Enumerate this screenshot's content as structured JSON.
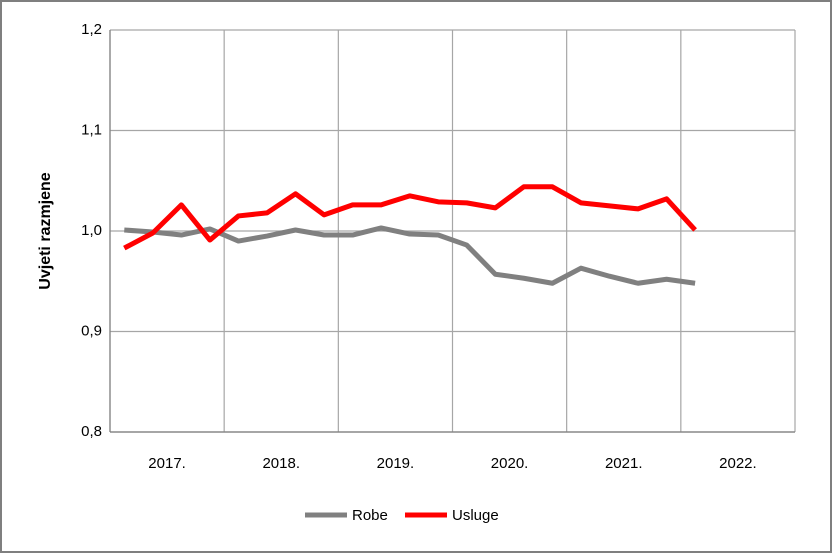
{
  "chart_data": {
    "type": "line",
    "y_label": "Uvjeti razmjene",
    "year_labels": [
      "2017.",
      "2018.",
      "2019.",
      "2020.",
      "2021.",
      "2022."
    ],
    "categories": [
      null,
      null,
      null,
      null,
      null,
      null,
      null,
      null,
      null,
      null,
      null,
      null,
      null,
      null,
      null,
      null,
      null,
      null,
      null,
      null,
      null
    ],
    "series": [
      {
        "name": "Robe",
        "color": "#808080",
        "values": [
          1.001,
          0.999,
          0.996,
          1.002,
          0.99,
          0.995,
          1.001,
          0.996,
          0.996,
          1.003,
          0.997,
          0.996,
          0.986,
          0.957,
          0.953,
          0.948,
          0.963,
          0.955,
          0.948,
          0.952,
          0.948
        ]
      },
      {
        "name": "Usluge",
        "color": "#ff0000",
        "values": [
          0.983,
          0.998,
          1.026,
          0.991,
          1.015,
          1.018,
          1.037,
          1.016,
          1.026,
          1.026,
          1.035,
          1.029,
          1.028,
          1.023,
          1.044,
          1.044,
          1.028,
          1.025,
          1.022,
          1.032,
          1.001
        ]
      }
    ],
    "ylim": [
      0.8,
      1.2
    ],
    "yticks": [
      {
        "value": 0.8,
        "label": "0,8"
      },
      {
        "value": 0.9,
        "label": "0,9"
      },
      {
        "value": 1.0,
        "label": "1,0"
      },
      {
        "value": 1.1,
        "label": "1,1"
      },
      {
        "value": 1.2,
        "label": "1,2"
      }
    ],
    "grid": true
  }
}
